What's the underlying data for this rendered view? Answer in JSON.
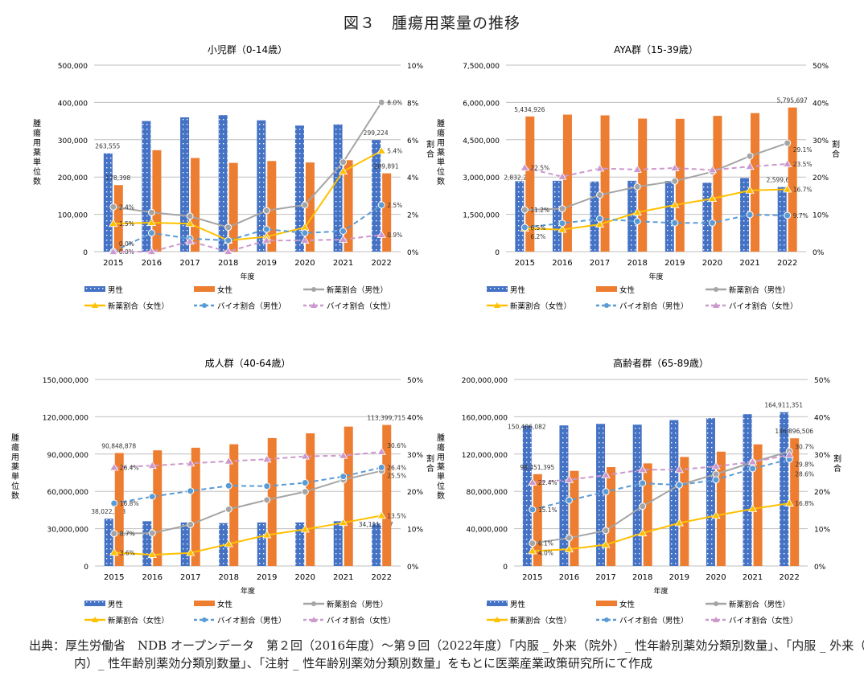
{
  "title": "図３　腫瘍用薬量の推移",
  "source": "出典：厚生労働省　NDB オープンデータ　第２回（2016年度）～第９回（2022年度）「内服 _ 外来（院外）_ 性年齢別薬効分類別数量」、「内服 _ 外来（院内）_ 性年齢別薬効分類別数量」、「注射 _ 性年齢別薬効分類別数量」をもとに医薬産業政策研究所にて作成",
  "colors": {
    "male_bar": "#4472C4",
    "female_bar": "#ED7D31",
    "new_male": "#A5A5A5",
    "new_female": "#FFC000",
    "bio_male": "#5B9BD5",
    "bio_female": "#CC99CC"
  },
  "chart_data": [
    {
      "type": "bar+line",
      "title": "小児群（0-14歳）",
      "xlabel": "年度",
      "ylabel": "腫瘍用薬単位数",
      "y2label": "割合",
      "categories": [
        "2015",
        "2016",
        "2017",
        "2018",
        "2019",
        "2020",
        "2021",
        "2022"
      ],
      "ylim": [
        0,
        500000
      ],
      "yticks": [
        0,
        100000,
        200000,
        300000,
        400000,
        500000
      ],
      "y2lim": [
        0,
        10
      ],
      "y2ticks": [
        0,
        2,
        4,
        6,
        8,
        10
      ],
      "grid": true,
      "legend": "bottom",
      "bars": [
        {
          "name": "男性",
          "values": [
            263555,
            350000,
            360000,
            366000,
            352000,
            338000,
            341000,
            299224
          ]
        },
        {
          "name": "女性",
          "values": [
            178398,
            272000,
            251000,
            238000,
            243000,
            239000,
            245000,
            209891
          ]
        }
      ],
      "lines": [
        {
          "name": "新薬割合（男性）",
          "values": [
            2.4,
            2.1,
            1.9,
            1.3,
            2.2,
            2.5,
            4.8,
            8.0
          ]
        },
        {
          "name": "新薬割合（女性）",
          "values": [
            1.5,
            1.55,
            1.5,
            0.6,
            0.8,
            1.3,
            4.3,
            5.4
          ]
        },
        {
          "name": "バイオ割合（男性）",
          "values": [
            0.0,
            1.0,
            0.7,
            0.6,
            1.2,
            1.0,
            1.1,
            2.5
          ]
        },
        {
          "name": "バイオ割合（女性）",
          "values": [
            0.0,
            0.0,
            0.55,
            0.0,
            0.6,
            0.6,
            0.65,
            0.9
          ]
        }
      ]
    },
    {
      "type": "bar+line",
      "title": "AYA群（15-39歳）",
      "xlabel": "年度",
      "ylabel": "腫瘍用薬単位数",
      "y2label": "割合",
      "categories": [
        "2015",
        "2016",
        "2017",
        "2018",
        "2019",
        "2020",
        "2021",
        "2022"
      ],
      "ylim": [
        0,
        7500000
      ],
      "yticks": [
        0,
        1500000,
        3000000,
        4500000,
        6000000,
        7500000
      ],
      "y2lim": [
        0,
        50
      ],
      "y2ticks": [
        0,
        10,
        20,
        30,
        40,
        50
      ],
      "grid": true,
      "legend": "bottom",
      "bars": [
        {
          "name": "男性",
          "values": [
            2832289,
            2850000,
            2820000,
            2850000,
            2840000,
            2770000,
            2960000,
            2599649
          ]
        },
        {
          "name": "女性",
          "values": [
            5434926,
            5510000,
            5480000,
            5350000,
            5340000,
            5460000,
            5570000,
            5795697
          ]
        }
      ],
      "lines": [
        {
          "name": "新薬割合（男性）",
          "values": [
            11.2,
            11.5,
            15.2,
            17.4,
            18.9,
            21.4,
            25.6,
            29.1
          ]
        },
        {
          "name": "新薬割合（女性）",
          "values": [
            6.2,
            5.9,
            7.3,
            10.5,
            12.5,
            14.2,
            16.4,
            16.7
          ]
        },
        {
          "name": "バイオ割合（男性）",
          "values": [
            6.5,
            7.6,
            8.8,
            8.1,
            7.7,
            7.7,
            9.9,
            9.7
          ]
        },
        {
          "name": "バイオ割合（女性）",
          "values": [
            22.5,
            20.1,
            22.3,
            22.0,
            22.4,
            21.9,
            22.8,
            23.5
          ]
        }
      ]
    },
    {
      "type": "bar+line",
      "title": "成人群（40-64歳）",
      "xlabel": "年度",
      "ylabel": "腫瘍用薬単位数",
      "y2label": "割合",
      "categories": [
        "2015",
        "2016",
        "2017",
        "2018",
        "2019",
        "2020",
        "2021",
        "2022"
      ],
      "ylim": [
        0,
        150000000
      ],
      "yticks": [
        0,
        30000000,
        60000000,
        90000000,
        120000000,
        150000000
      ],
      "y2lim": [
        0,
        50
      ],
      "y2ticks": [
        0,
        10,
        20,
        30,
        40,
        50
      ],
      "grid": true,
      "legend": "bottom",
      "bars": [
        {
          "name": "男性",
          "values": [
            38022243,
            36000000,
            35000000,
            34500000,
            35000000,
            35000000,
            36000000,
            34111187
          ]
        },
        {
          "name": "女性",
          "values": [
            90848878,
            93000000,
            95100000,
            97900000,
            102900000,
            106700000,
            112100000,
            113399715
          ]
        }
      ],
      "lines": [
        {
          "name": "新薬割合（男性）",
          "values": [
            8.7,
            8.8,
            11.1,
            15.2,
            17.7,
            19.9,
            23.1,
            25.5
          ]
        },
        {
          "name": "新薬割合（女性）",
          "values": [
            3.6,
            3.0,
            3.5,
            5.9,
            8.3,
            9.8,
            11.6,
            13.5
          ]
        },
        {
          "name": "バイオ割合（男性）",
          "values": [
            16.8,
            18.6,
            20.1,
            21.5,
            21.4,
            22.3,
            24.0,
            26.4
          ]
        },
        {
          "name": "バイオ割合（女性）",
          "values": [
            26.4,
            26.9,
            27.5,
            28.1,
            28.6,
            29.4,
            29.6,
            30.6
          ]
        }
      ]
    },
    {
      "type": "bar+line",
      "title": "高齢者群（65-89歳）",
      "xlabel": "年度",
      "ylabel": "腫瘍用薬単位数",
      "y2label": "割合",
      "categories": [
        "2015",
        "2016",
        "2017",
        "2018",
        "2019",
        "2020",
        "2021",
        "2022"
      ],
      "ylim": [
        0,
        200000000
      ],
      "yticks": [
        0,
        40000000,
        80000000,
        120000000,
        160000000,
        200000000
      ],
      "y2lim": [
        0,
        50
      ],
      "y2ticks": [
        0,
        10,
        20,
        30,
        40,
        50
      ],
      "grid": true,
      "legend": "bottom",
      "bars": [
        {
          "name": "男性",
          "values": [
            150406082,
            150700000,
            152400000,
            151500000,
            156400000,
            158500000,
            162800000,
            164911351
          ]
        },
        {
          "name": "女性",
          "values": [
            98451395,
            102000000,
            106000000,
            110000000,
            116900000,
            122600000,
            130400000,
            136896506
          ]
        }
      ],
      "lines": [
        {
          "name": "新薬割合（男性）",
          "values": [
            6.1,
            7.5,
            9.5,
            16.0,
            21.7,
            24.6,
            27.8,
            30.7
          ]
        },
        {
          "name": "新薬割合（女性）",
          "values": [
            4.0,
            4.5,
            5.7,
            8.8,
            11.5,
            13.5,
            15.3,
            16.8
          ]
        },
        {
          "name": "バイオ割合（男性）",
          "values": [
            15.1,
            17.6,
            19.9,
            22.2,
            21.7,
            23.1,
            26.1,
            28.6
          ]
        },
        {
          "name": "バイオ割合（女性）",
          "values": [
            22.4,
            23.1,
            24.35,
            25.8,
            25.8,
            26.7,
            27.9,
            29.8
          ]
        }
      ]
    }
  ]
}
